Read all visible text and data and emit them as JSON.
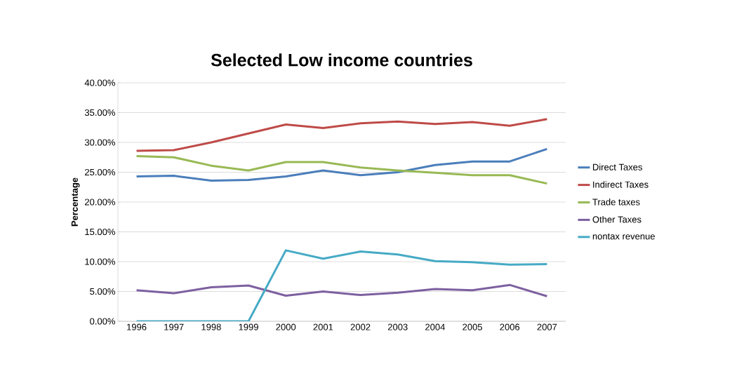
{
  "chart_data": {
    "type": "line",
    "title": "Selected Low income countries",
    "ylabel": "Percentage",
    "categories": [
      "1996",
      "1997",
      "1998",
      "1999",
      "2000",
      "2001",
      "2002",
      "2003",
      "2004",
      "2005",
      "2006",
      "2007"
    ],
    "ylim": [
      0,
      40
    ],
    "yticks": [
      {
        "value": 0,
        "label": "0.00%"
      },
      {
        "value": 5,
        "label": "5.00%"
      },
      {
        "value": 10,
        "label": "10.00%"
      },
      {
        "value": 15,
        "label": "15.00%"
      },
      {
        "value": 20,
        "label": "20.00%"
      },
      {
        "value": 25,
        "label": "25.00%"
      },
      {
        "value": 30,
        "label": "30.00%"
      },
      {
        "value": 35,
        "label": "35.00%"
      },
      {
        "value": 40,
        "label": "40.00%"
      }
    ],
    "grid": "y",
    "legend": "right",
    "marker": "none",
    "line_style": "solid",
    "series": [
      {
        "name": "Direct Taxes",
        "color": "#4a7ebb",
        "values": [
          24.3,
          24.4,
          23.6,
          23.7,
          24.3,
          25.3,
          24.5,
          25.0,
          26.2,
          26.8,
          26.8,
          28.9
        ]
      },
      {
        "name": "Indirect Taxes",
        "color": "#be4b48",
        "values": [
          28.6,
          28.7,
          30.0,
          31.5,
          33.0,
          32.4,
          33.2,
          33.5,
          33.1,
          33.4,
          32.8,
          33.9
        ]
      },
      {
        "name": "Trade taxes",
        "color": "#98b954",
        "values": [
          27.7,
          27.5,
          26.1,
          25.3,
          26.7,
          26.7,
          25.8,
          25.3,
          24.9,
          24.5,
          24.5,
          23.1
        ]
      },
      {
        "name": "Other Taxes",
        "color": "#7d60a0",
        "values": [
          5.2,
          4.7,
          5.7,
          6.0,
          4.3,
          5.0,
          4.4,
          4.8,
          5.4,
          5.2,
          6.1,
          4.2
        ]
      },
      {
        "name": "nontax revenue",
        "color": "#46aac5",
        "values": [
          0,
          0,
          0,
          0,
          11.9,
          10.5,
          11.7,
          11.2,
          10.1,
          9.9,
          9.5,
          9.6
        ]
      }
    ]
  }
}
